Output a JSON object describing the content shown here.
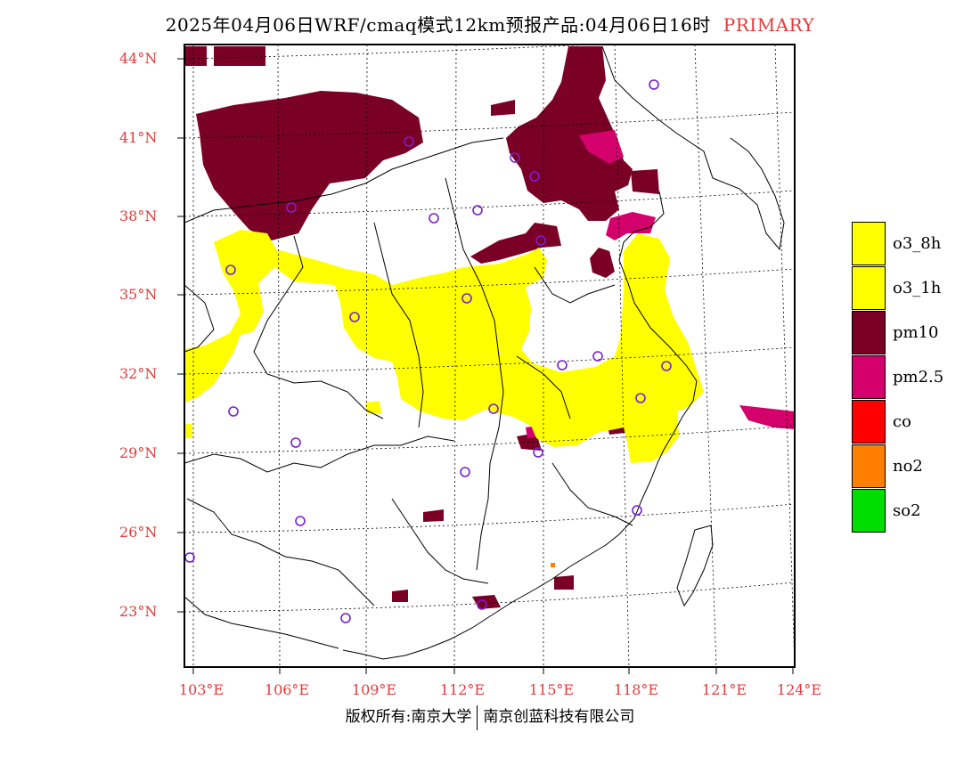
{
  "title": {
    "main": "2025年04月06日WRF/cmaq模式12km预报产品:04月06日16时",
    "mode": "PRIMARY"
  },
  "lat_labels": [
    "44°N",
    "41°N",
    "38°N",
    "35°N",
    "32°N",
    "29°N",
    "26°N",
    "23°N"
  ],
  "lon_labels": [
    "103°E",
    "106°E",
    "109°E",
    "112°E",
    "115°E",
    "118°E",
    "121°E",
    "124°E"
  ],
  "legend": [
    {
      "label": "o3_8h",
      "color": "#ffff00"
    },
    {
      "label": "o3_1h",
      "color": "#ffff00"
    },
    {
      "label": "pm10",
      "color": "#7a0026"
    },
    {
      "label": "pm2.5",
      "color": "#d4006c"
    },
    {
      "label": "co",
      "color": "#ff0000"
    },
    {
      "label": "no2",
      "color": "#ff8000"
    },
    {
      "label": "so2",
      "color": "#00dd00"
    }
  ],
  "footer": {
    "left": "版权所有:南京大学",
    "right": "南京创蓝科技有限公司"
  }
}
